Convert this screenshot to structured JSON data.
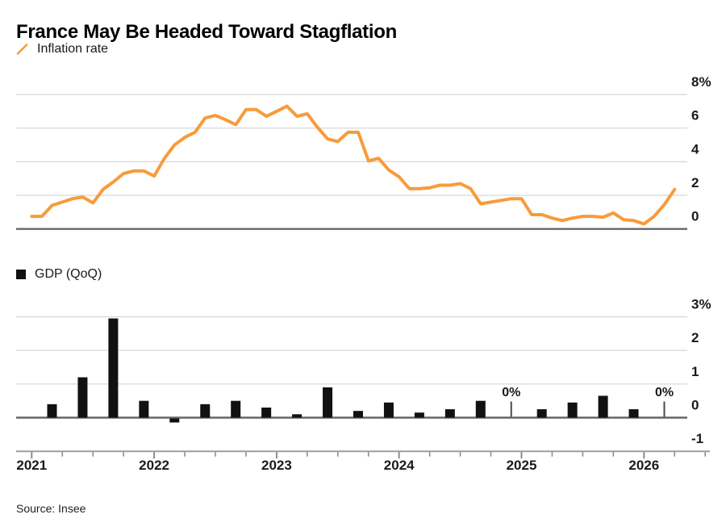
{
  "title": "France May Be Headed Toward Stagflation",
  "source": "Source: Insee",
  "colors": {
    "accent_orange": "#F89C3B",
    "bar_black": "#111111",
    "gridline": "#DCDCDC",
    "zero_line": "#676767",
    "axis_line": "#9E9E9E",
    "tick": "#8C8C8C",
    "label_text": "#1A1A1A"
  },
  "inflation_chart": {
    "legend": "Inflation rate",
    "y_ticks": [
      {
        "value": 8,
        "label": "8%"
      },
      {
        "value": 6,
        "label": "6"
      },
      {
        "value": 4,
        "label": "4"
      },
      {
        "value": 2,
        "label": "2"
      },
      {
        "value": 0,
        "label": "0"
      }
    ]
  },
  "gdp_chart": {
    "legend": "GDP (QoQ)",
    "zero_label": "0%",
    "y_ticks": [
      {
        "value": 3,
        "label": "3%"
      },
      {
        "value": 2,
        "label": "2"
      },
      {
        "value": 1,
        "label": "1"
      },
      {
        "value": 0,
        "label": "0"
      },
      {
        "value": -1,
        "label": "-1"
      }
    ]
  },
  "x_axis": {
    "year_labels": [
      "2021",
      "2022",
      "2023",
      "2024",
      "2025",
      "2026"
    ]
  },
  "chart_data": [
    {
      "type": "line",
      "name": "Inflation rate",
      "unit": "%",
      "x_freq": "monthly",
      "x_start": "2021-01",
      "x_end": "2026-04",
      "ylim": [
        0,
        8
      ],
      "y_tick_values": [
        0,
        2,
        4,
        6,
        8
      ],
      "legend_position": "top-left",
      "grid": true,
      "values": [
        0.75,
        0.75,
        1.4,
        1.6,
        1.8,
        1.9,
        1.55,
        2.35,
        2.8,
        3.3,
        3.45,
        3.45,
        3.15,
        4.2,
        5.0,
        5.45,
        5.75,
        6.6,
        6.75,
        6.5,
        6.2,
        7.1,
        7.1,
        6.7,
        7.0,
        7.3,
        6.7,
        6.85,
        6.05,
        5.35,
        5.2,
        5.75,
        5.75,
        4.05,
        4.2,
        3.5,
        3.1,
        2.4,
        2.4,
        2.45,
        2.6,
        2.6,
        2.7,
        2.4,
        1.5,
        1.6,
        1.7,
        1.8,
        1.8,
        0.85,
        0.85,
        0.65,
        0.5,
        0.65,
        0.75,
        0.75,
        0.7,
        0.95,
        0.55,
        0.5,
        0.3,
        0.75,
        1.45,
        2.35
      ]
    },
    {
      "type": "bar",
      "name": "GDP (QoQ)",
      "unit": "%",
      "x_freq": "quarterly",
      "x_start": "2021-Q1",
      "x_end": "2026-Q1",
      "ylim": [
        -1,
        3
      ],
      "y_tick_values": [
        -1,
        0,
        1,
        2,
        3
      ],
      "legend_position": "top-left",
      "grid": true,
      "categories": [
        "2021-Q1",
        "2021-Q2",
        "2021-Q3",
        "2021-Q4",
        "2022-Q1",
        "2022-Q2",
        "2022-Q3",
        "2022-Q4",
        "2023-Q1",
        "2023-Q2",
        "2023-Q3",
        "2023-Q4",
        "2024-Q1",
        "2024-Q2",
        "2024-Q3",
        "2024-Q4",
        "2025-Q1",
        "2025-Q2",
        "2025-Q3",
        "2025-Q4",
        "2026-Q1"
      ],
      "values": [
        0.4,
        1.2,
        2.95,
        0.5,
        -0.12,
        0.4,
        0.5,
        0.3,
        0.1,
        0.9,
        0.2,
        0.45,
        0.15,
        0.25,
        0.5,
        0.0,
        0.25,
        0.45,
        0.65,
        0.25,
        0.0
      ],
      "zero_annotations": [
        "2024-Q4",
        "2026-Q1"
      ]
    }
  ]
}
